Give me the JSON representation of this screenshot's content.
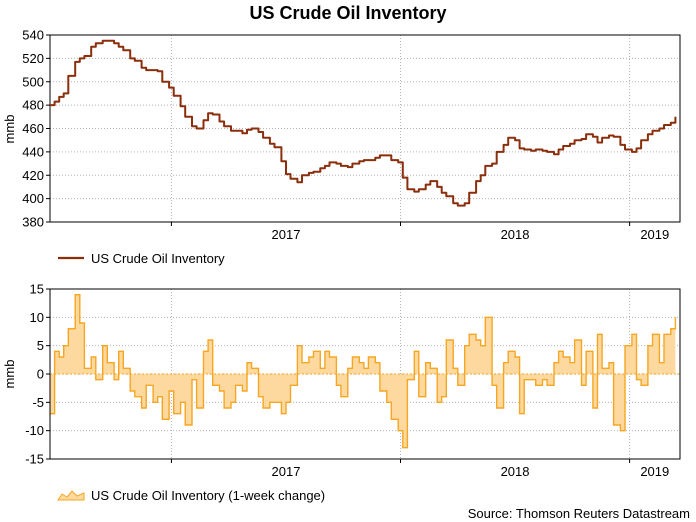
{
  "title": "US Crude Oil Inventory",
  "source": "Source: Thomson Reuters Datastream",
  "colors": {
    "inventory_line": "#8b2e0b",
    "change_fill": "#fdd9a0",
    "change_line": "#f5a623",
    "grid": "#b4b4b4",
    "axis": "#000000"
  },
  "chart_data": [
    {
      "type": "line",
      "ylabel": "mmb",
      "ylim": [
        380,
        540
      ],
      "yticks": [
        380,
        400,
        420,
        440,
        460,
        480,
        500,
        520,
        540
      ],
      "xlim": [
        2016.47,
        2019.22
      ],
      "x_tick_labels": [
        {
          "label": "2017",
          "x": 2017.0
        },
        {
          "label": "2018",
          "x": 2018.0
        },
        {
          "label": "2019",
          "x": 2019.0
        }
      ],
      "grid": true,
      "legend": "bottom-left",
      "series": [
        {
          "name": "US Crude Oil Inventory",
          "x": [
            2016.47,
            2016.49,
            2016.51,
            2016.53,
            2016.55,
            2016.58,
            2016.6,
            2016.62,
            2016.65,
            2016.67,
            2016.7,
            2016.72,
            2016.75,
            2016.77,
            2016.79,
            2016.82,
            2016.84,
            2016.87,
            2016.89,
            2016.92,
            2016.94,
            2016.96,
            2016.99,
            2017.01,
            2017.04,
            2017.06,
            2017.09,
            2017.11,
            2017.14,
            2017.16,
            2017.18,
            2017.21,
            2017.23,
            2017.26,
            2017.28,
            2017.31,
            2017.33,
            2017.35,
            2017.38,
            2017.4,
            2017.43,
            2017.45,
            2017.48,
            2017.5,
            2017.52,
            2017.55,
            2017.57,
            2017.6,
            2017.62,
            2017.65,
            2017.67,
            2017.69,
            2017.72,
            2017.74,
            2017.77,
            2017.79,
            2017.82,
            2017.84,
            2017.86,
            2017.89,
            2017.91,
            2017.94,
            2017.96,
            2017.99,
            2018.01,
            2018.03,
            2018.06,
            2018.08,
            2018.11,
            2018.13,
            2018.16,
            2018.18,
            2018.2,
            2018.23,
            2018.25,
            2018.28,
            2018.3,
            2018.33,
            2018.35,
            2018.37,
            2018.4,
            2018.42,
            2018.45,
            2018.47,
            2018.5,
            2018.52,
            2018.54,
            2018.57,
            2018.59,
            2018.62,
            2018.64,
            2018.67,
            2018.69,
            2018.71,
            2018.74,
            2018.76,
            2018.79,
            2018.81,
            2018.84,
            2018.86,
            2018.88,
            2018.91,
            2018.93,
            2018.96,
            2018.98,
            2019.01,
            2019.03,
            2019.05,
            2019.08,
            2019.1,
            2019.13,
            2019.15,
            2019.18,
            2019.2
          ],
          "values": [
            480,
            483,
            487,
            490,
            505,
            517,
            520,
            522,
            530,
            533,
            535,
            535,
            533,
            530,
            527,
            520,
            518,
            512,
            510,
            510,
            509,
            500,
            495,
            488,
            479,
            470,
            462,
            460,
            467,
            473,
            472,
            466,
            462,
            458,
            458,
            456,
            459,
            460,
            457,
            452,
            447,
            444,
            432,
            421,
            417,
            414,
            420,
            422,
            423,
            426,
            428,
            431,
            430,
            428,
            427,
            430,
            432,
            433,
            433,
            435,
            437,
            437,
            433,
            431,
            418,
            408,
            406,
            408,
            412,
            415,
            410,
            405,
            402,
            396,
            394,
            396,
            405,
            415,
            420,
            428,
            430,
            440,
            446,
            452,
            450,
            443,
            442,
            441,
            442,
            441,
            440,
            438,
            442,
            445,
            447,
            450,
            451,
            455,
            453,
            448,
            452,
            454,
            453,
            446,
            442,
            440,
            443,
            450,
            455,
            458,
            460,
            463,
            465,
            470
          ]
        }
      ]
    },
    {
      "type": "area",
      "ylabel": "mmb",
      "ylim": [
        -15,
        15
      ],
      "yticks": [
        -15,
        -10,
        -5,
        0,
        5,
        10,
        15
      ],
      "xlim": [
        2016.47,
        2019.22
      ],
      "x_tick_labels": [
        {
          "label": "2017",
          "x": 2017.0
        },
        {
          "label": "2018",
          "x": 2018.0
        },
        {
          "label": "2019",
          "x": 2019.0
        }
      ],
      "grid": true,
      "legend": "bottom-left",
      "series": [
        {
          "name": "US Crude Oil Inventory (1-week change)",
          "x": [
            2016.47,
            2016.49,
            2016.51,
            2016.53,
            2016.55,
            2016.58,
            2016.6,
            2016.62,
            2016.65,
            2016.67,
            2016.7,
            2016.72,
            2016.75,
            2016.77,
            2016.79,
            2016.82,
            2016.84,
            2016.87,
            2016.89,
            2016.92,
            2016.94,
            2016.96,
            2016.99,
            2017.01,
            2017.04,
            2017.06,
            2017.09,
            2017.11,
            2017.14,
            2017.16,
            2017.18,
            2017.21,
            2017.23,
            2017.26,
            2017.28,
            2017.31,
            2017.33,
            2017.35,
            2017.38,
            2017.4,
            2017.43,
            2017.45,
            2017.48,
            2017.5,
            2017.52,
            2017.55,
            2017.57,
            2017.6,
            2017.62,
            2017.65,
            2017.67,
            2017.69,
            2017.72,
            2017.74,
            2017.77,
            2017.79,
            2017.82,
            2017.84,
            2017.86,
            2017.89,
            2017.91,
            2017.94,
            2017.96,
            2017.99,
            2018.01,
            2018.03,
            2018.06,
            2018.08,
            2018.11,
            2018.13,
            2018.16,
            2018.18,
            2018.2,
            2018.23,
            2018.25,
            2018.28,
            2018.3,
            2018.33,
            2018.35,
            2018.37,
            2018.4,
            2018.42,
            2018.45,
            2018.47,
            2018.5,
            2018.52,
            2018.54,
            2018.57,
            2018.59,
            2018.62,
            2018.64,
            2018.67,
            2018.69,
            2018.71,
            2018.74,
            2018.76,
            2018.79,
            2018.81,
            2018.84,
            2018.86,
            2018.88,
            2018.91,
            2018.93,
            2018.96,
            2018.98,
            2019.01,
            2019.03,
            2019.05,
            2019.08,
            2019.1,
            2019.13,
            2019.15,
            2019.18,
            2019.2
          ],
          "values": [
            -7,
            4,
            3,
            5,
            8,
            14,
            9,
            1,
            3,
            -1,
            5,
            2,
            -1,
            4,
            1,
            -3,
            -4,
            -6,
            -2,
            -5,
            -4,
            -8,
            -3,
            -7,
            -5,
            -9,
            -1,
            -6,
            4,
            6,
            -2,
            -3,
            -6,
            -5,
            -2,
            -3,
            2,
            1,
            -4,
            -6,
            -5,
            -5,
            -7,
            -5,
            -2,
            5,
            2,
            3,
            4,
            1,
            4,
            3,
            -2,
            -4,
            1,
            3,
            2,
            1,
            3,
            2,
            -3,
            -5,
            -8,
            -10,
            -13,
            -1,
            4,
            -4,
            2,
            1,
            -5,
            -4,
            6,
            1,
            -2,
            5,
            7,
            6,
            5,
            10,
            -2,
            -6,
            2,
            4,
            3,
            -7,
            -1,
            -1,
            -2,
            -1,
            -2,
            2,
            4,
            3,
            2,
            6,
            -2,
            4,
            -6,
            7,
            1,
            2,
            -9,
            -10,
            5,
            7,
            -1,
            -2,
            5,
            7,
            2,
            7,
            8,
            10
          ]
        }
      ]
    }
  ]
}
